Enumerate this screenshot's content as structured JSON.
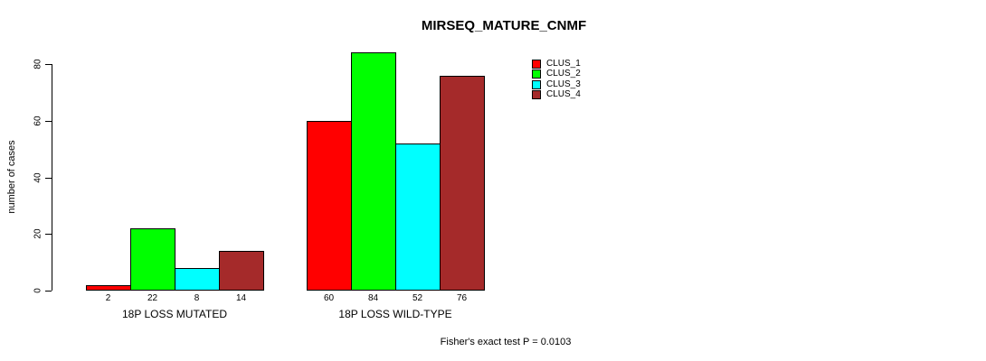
{
  "chart_data": {
    "type": "bar",
    "title": "MIRSEQ_MATURE_CNMF",
    "ylabel": "number of cases",
    "xlabel": "",
    "ylim": [
      0,
      80
    ],
    "yticks": [
      0,
      20,
      40,
      60,
      80
    ],
    "categories": [
      "18P LOSS MUTATED",
      "18P LOSS WILD-TYPE"
    ],
    "series": [
      {
        "name": "CLUS_1",
        "color": "#ff0000",
        "values": [
          2,
          60
        ]
      },
      {
        "name": "CLUS_2",
        "color": "#00ff00",
        "values": [
          22,
          84
        ]
      },
      {
        "name": "CLUS_3",
        "color": "#00ffff",
        "values": [
          8,
          52
        ]
      },
      {
        "name": "CLUS_4",
        "color": "#a52a2a",
        "values": [
          14,
          76
        ]
      }
    ],
    "bar_value_labels": [
      2,
      22,
      8,
      14,
      60,
      84,
      52,
      76
    ],
    "legend_position": "top-right",
    "legend_entries": [
      "CLUS_1",
      "CLUS_2",
      "CLUS_3",
      "CLUS_4"
    ],
    "grid": false,
    "annotation": "Fisher's exact test P = 0.0103",
    "colors": {
      "background": "#ffffff",
      "axis": "#000000",
      "text": "#000000"
    }
  }
}
